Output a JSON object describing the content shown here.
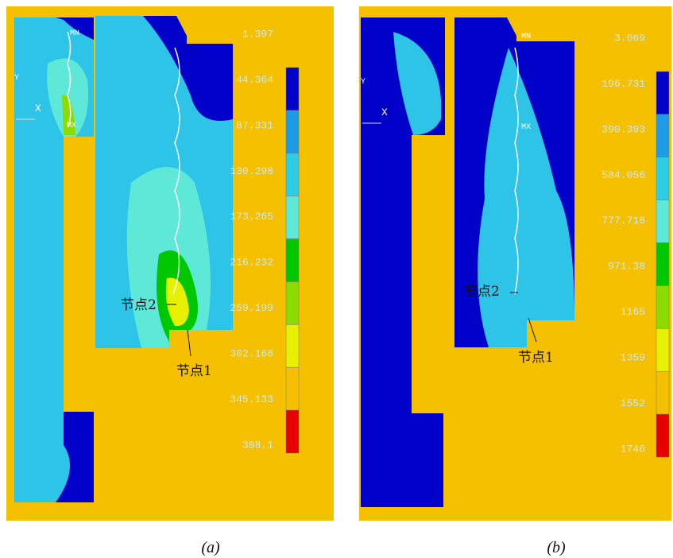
{
  "panels": [
    {
      "caption": "(a)",
      "min_label": "MN",
      "max_label": "MX",
      "axis_x": "X",
      "axis_y": "Y",
      "node_1": "节点1",
      "node_2": "节点2",
      "legend": [
        "1.397",
        "44.364",
        "87.331",
        "130.298",
        "173.265",
        "216.232",
        "259.199",
        "302.166",
        "345.133",
        "388.1"
      ],
      "legend_colors": [
        "#0000c8",
        "#1e9be6",
        "#2ecde6",
        "#5ee8d8",
        "#00c800",
        "#8cdc00",
        "#e6f000",
        "#f5c000",
        "#e60000"
      ]
    },
    {
      "caption": "(b)",
      "min_label": "MN",
      "max_label": "MX",
      "axis_x": "X",
      "axis_y": "Y",
      "node_1": "节点1",
      "node_2": "节点2",
      "legend": [
        "3.069",
        "196.731",
        "390.393",
        "584.056",
        "777.718",
        "971.38",
        "1165",
        "1359",
        "1552",
        "1746"
      ],
      "legend_colors": [
        "#0000c8",
        "#1e9be6",
        "#2ecde6",
        "#5ee8d8",
        "#00c800",
        "#8cdc00",
        "#e6f000",
        "#f5c000",
        "#e60000"
      ]
    }
  ]
}
